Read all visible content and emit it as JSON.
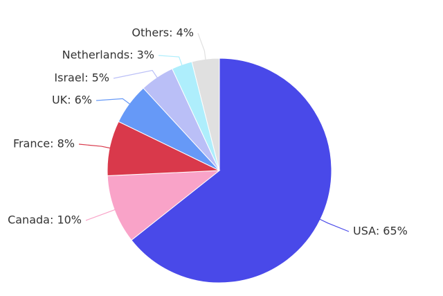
{
  "chart_data": {
    "type": "pie",
    "values": [
      65,
      10,
      8,
      6,
      5,
      3,
      4
    ],
    "value_labels": [
      "USA: 65%",
      "Canada: 10%",
      "France: 8%",
      "UK: 6%",
      "Israel: 5%",
      "Netherlands: 3%",
      "Others: 4%"
    ],
    "colors": [
      "#4949e9",
      "#f9a3c8",
      "#d9394b",
      "#6699f7",
      "#babff7",
      "#aeeefc",
      "#e0e0e0"
    ]
  }
}
